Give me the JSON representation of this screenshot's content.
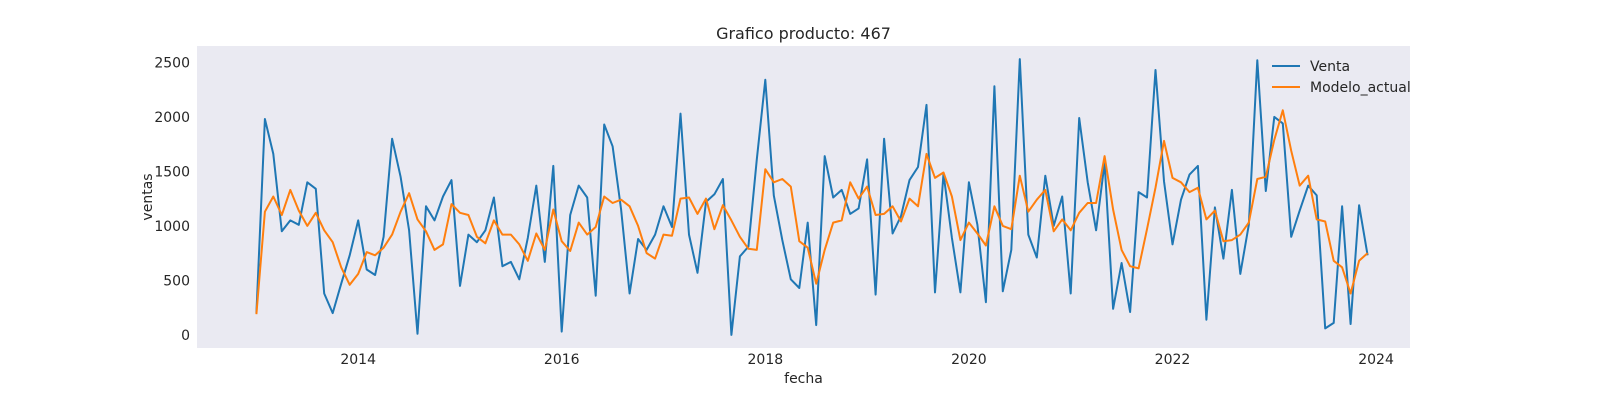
{
  "chart_data": {
    "type": "line",
    "title": "Grafico producto: 467",
    "xlabel": "fecha",
    "ylabel": "ventas",
    "x_start": "2013-01",
    "x_frequency": "monthly",
    "xlim": [
      "2012-06",
      "2024-05"
    ],
    "ylim": [
      -120,
      2650
    ],
    "xticks": [
      "2014",
      "2016",
      "2018",
      "2020",
      "2022",
      "2024"
    ],
    "yticks": [
      0,
      500,
      1000,
      1500,
      2000,
      2500
    ],
    "grid": false,
    "background": "#eaeaf2",
    "legend_position": "top-right",
    "series": [
      {
        "name": "Venta",
        "color": "#1f77b4",
        "values": [
          200,
          1980,
          1660,
          950,
          1050,
          1010,
          1400,
          1340,
          380,
          200,
          470,
          730,
          1050,
          600,
          550,
          900,
          1800,
          1450,
          960,
          10,
          1180,
          1050,
          1270,
          1420,
          450,
          920,
          850,
          960,
          1260,
          630,
          670,
          510,
          890,
          1370,
          670,
          1550,
          30,
          1100,
          1370,
          1260,
          360,
          1930,
          1730,
          1150,
          380,
          880,
          780,
          920,
          1180,
          990,
          2030,
          920,
          570,
          1220,
          1290,
          1430,
          0,
          720,
          810,
          1610,
          2340,
          1280,
          870,
          510,
          430,
          1030,
          90,
          1640,
          1260,
          1330,
          1110,
          1160,
          1610,
          370,
          1800,
          930,
          1090,
          1420,
          1540,
          2110,
          390,
          1480,
          890,
          390,
          1400,
          1010,
          300,
          2280,
          400,
          780,
          2530,
          920,
          710,
          1460,
          1000,
          1270,
          380,
          1990,
          1400,
          960,
          1580,
          240,
          660,
          210,
          1310,
          1260,
          2430,
          1410,
          830,
          1240,
          1470,
          1550,
          140,
          1170,
          700,
          1330,
          560,
          1010,
          2520,
          1320,
          2000,
          1940,
          900,
          1140,
          1370,
          1280,
          60,
          110,
          1180,
          100,
          1190,
          730
        ]
      },
      {
        "name": "Modelo_actual",
        "color": "#ff7f0e",
        "values": [
          190,
          1130,
          1270,
          1100,
          1330,
          1140,
          1000,
          1120,
          960,
          850,
          620,
          460,
          560,
          760,
          730,
          800,
          920,
          1130,
          1300,
          1060,
          950,
          780,
          830,
          1200,
          1120,
          1100,
          900,
          840,
          1050,
          920,
          920,
          830,
          680,
          930,
          780,
          1150,
          860,
          770,
          1030,
          920,
          990,
          1270,
          1210,
          1240,
          1180,
          1000,
          750,
          700,
          920,
          910,
          1250,
          1260,
          1110,
          1250,
          970,
          1190,
          1050,
          900,
          790,
          780,
          1520,
          1400,
          1430,
          1360,
          860,
          800,
          470,
          780,
          1030,
          1050,
          1400,
          1250,
          1360,
          1100,
          1110,
          1180,
          1040,
          1250,
          1180,
          1660,
          1440,
          1490,
          1270,
          870,
          1030,
          930,
          820,
          1180,
          1000,
          970,
          1460,
          1130,
          1240,
          1330,
          950,
          1060,
          960,
          1120,
          1210,
          1210,
          1640,
          1150,
          780,
          630,
          610,
          970,
          1350,
          1780,
          1440,
          1400,
          1310,
          1350,
          1060,
          1140,
          860,
          870,
          920,
          1030,
          1430,
          1450,
          1790,
          2060,
          1690,
          1370,
          1460,
          1060,
          1040,
          680,
          620,
          380,
          680,
          750
        ]
      }
    ]
  }
}
